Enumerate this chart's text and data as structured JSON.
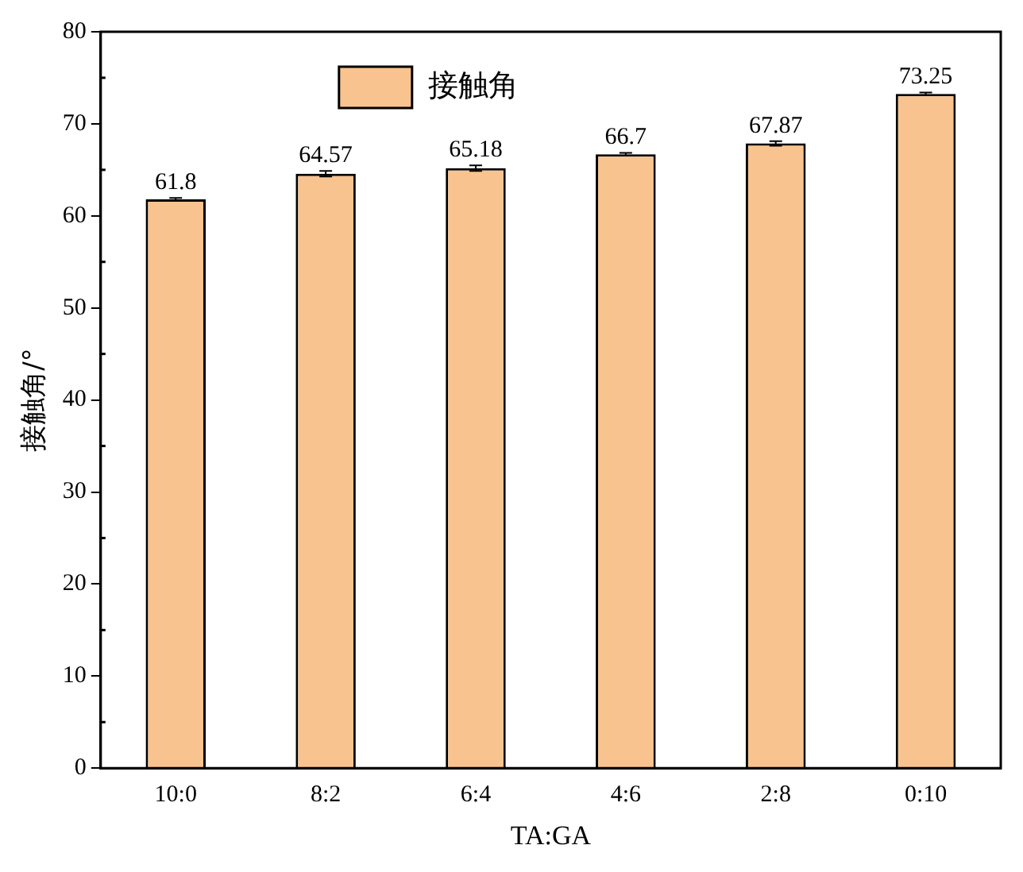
{
  "chart_data": {
    "type": "bar",
    "categories": [
      "10:0",
      "8:2",
      "6:4",
      "4:6",
      "2:8",
      "0:10"
    ],
    "series": [
      {
        "name": "接触角",
        "color": "#f9c38f",
        "values": [
          61.8,
          64.57,
          65.18,
          66.7,
          67.87,
          73.25
        ],
        "errors": [
          0.15,
          0.3,
          0.3,
          0.15,
          0.25,
          0.15
        ]
      }
    ],
    "xlabel": "TA:GA",
    "ylabel": "接触角/°",
    "ylim": [
      0,
      80
    ],
    "yticks": [
      0,
      10,
      20,
      30,
      40,
      50,
      60,
      70,
      80
    ],
    "data_labels": true,
    "legend": "top",
    "grid": false
  }
}
